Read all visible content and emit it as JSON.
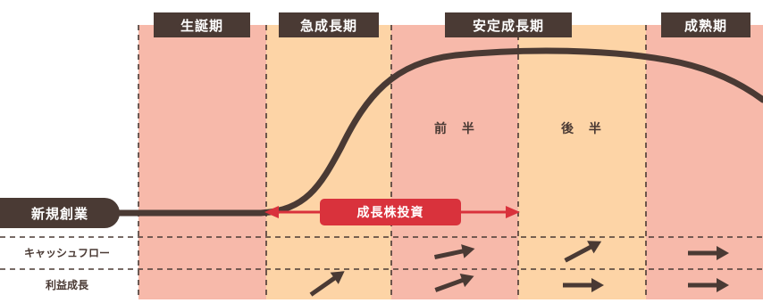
{
  "phases": [
    {
      "label": "生誕期"
    },
    {
      "label": "急成長期"
    },
    {
      "label": "安定成長期"
    },
    {
      "label": "成熟期"
    }
  ],
  "sub_phases": {
    "first_half": "前 半",
    "second_half": "後 半"
  },
  "startup_label": "新規創業",
  "investment_label": "成長株投資",
  "rows": {
    "cash_flow": "キャッシュフロー",
    "profit_growth": "利益成長"
  },
  "colors": {
    "dark_brown": "#4a3a34",
    "pink": "#f7b9aa",
    "peach": "#fdd4a6",
    "red": "#d9323c",
    "dashed_line": "#4a3a34"
  },
  "icons": {
    "trend": "up-right-arrow-icon",
    "flat": "right-arrow-icon"
  }
}
